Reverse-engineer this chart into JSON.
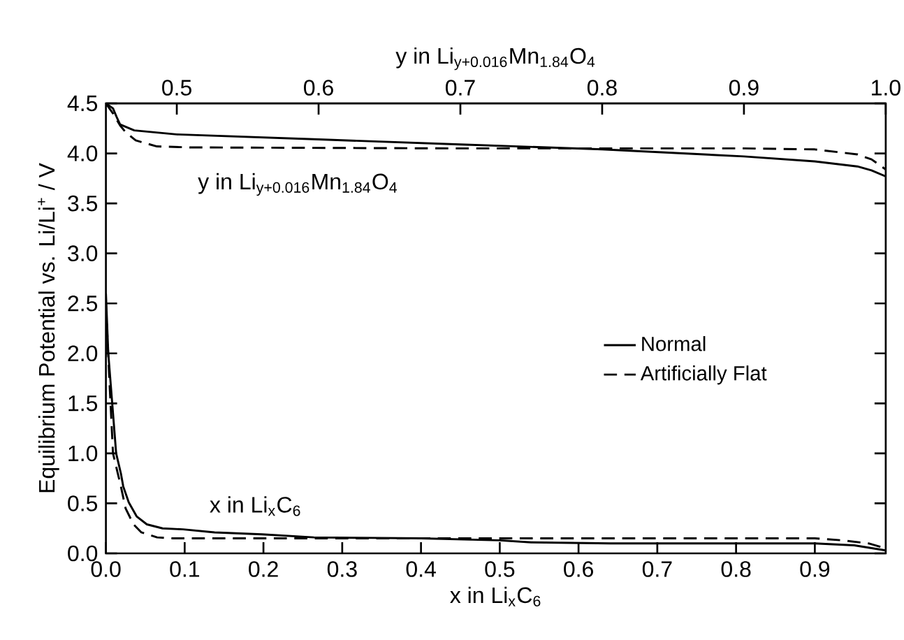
{
  "chart_data": {
    "type": "line",
    "xlabel": "x in Li$_{x}$C$_{6}$",
    "x2label": "y in Li$_{y+0.016}$Mn$_{1.84}$O$_{4}$",
    "ylabel": "Equilibrium Potential vs. Li/Li$^{+}$ / V",
    "xlim": [
      0,
      0.99
    ],
    "x2lim": [
      0.45,
      1.0
    ],
    "ylim": [
      0,
      4.5
    ],
    "xticks": [
      {
        "value": 0,
        "label": "0.0"
      },
      0.1,
      0.2,
      0.3,
      0.4,
      0.5,
      0.6,
      0.7,
      0.8,
      0.9
    ],
    "x2ticks": [
      0.5,
      0.6,
      0.7,
      0.8,
      0.9,
      {
        "value": 1.0,
        "label": "1.0"
      }
    ],
    "yticks": [
      {
        "value": 0,
        "label": "0.0"
      },
      0.5,
      {
        "value": 1.0,
        "label": "1.0"
      },
      1.5,
      {
        "value": 2.0,
        "label": "2.0"
      },
      2.5,
      {
        "value": 3.0,
        "label": "3.0"
      },
      3.5,
      {
        "value": 4.0,
        "label": "4.0"
      },
      4.5
    ],
    "legend": "right",
    "grid": false,
    "marker": "none",
    "annotations": [
      "y in Li$_{y+0.016}$Mn$_{1.84}$O$_{4}$",
      "x in Li$_{x}$C$_{6}$"
    ],
    "series": [
      {
        "name": "Normal",
        "color": "#000000",
        "line_style": "solid",
        "x": [
          0,
          0.003,
          0.009,
          0.013,
          0.019,
          0.022,
          0.029,
          0.039,
          0.052,
          0.072,
          0.098,
          0.138,
          0.198,
          0.264,
          0.4,
          0.5,
          0.54,
          0.64,
          0.8,
          0.9,
          0.95,
          0.99
        ],
        "values": [
          2.6,
          2.0,
          1.4,
          1.0,
          0.8,
          0.67,
          0.51,
          0.37,
          0.29,
          0.25,
          0.24,
          0.21,
          0.19,
          0.16,
          0.15,
          0.13,
          0.11,
          0.1,
          0.1,
          0.1,
          0.08,
          0.03
        ]
      },
      {
        "name": "Artificially Flat",
        "color": "#000000",
        "line_style": "dashed",
        "x": [
          0,
          0.004,
          0.009,
          0.019,
          0.025,
          0.035,
          0.045,
          0.065,
          0.085,
          0.3,
          0.6,
          0.9,
          0.935,
          0.968,
          0.99
        ],
        "values": [
          2.5,
          1.8,
          1.0,
          0.67,
          0.45,
          0.29,
          0.21,
          0.16,
          0.15,
          0.15,
          0.15,
          0.15,
          0.13,
          0.1,
          0.05
        ]
      },
      {
        "color": "#000000",
        "line_style": "solid",
        "axis": "x2",
        "x": [
          0.45,
          0.455,
          0.458,
          0.46,
          0.47,
          0.5,
          0.6,
          0.7,
          0.8,
          0.9,
          0.95,
          0.98,
          0.99,
          1.0
        ],
        "values": [
          4.5,
          4.45,
          4.35,
          4.29,
          4.23,
          4.19,
          4.14,
          4.09,
          4.04,
          3.97,
          3.92,
          3.87,
          3.83,
          3.77
        ]
      },
      {
        "color": "#000000",
        "line_style": "dashed",
        "axis": "x2",
        "x": [
          0.45,
          0.455,
          0.46,
          0.464,
          0.471,
          0.486,
          0.509,
          0.7,
          0.9,
          0.95,
          0.98,
          0.99,
          1.0
        ],
        "values": [
          4.5,
          4.4,
          4.28,
          4.21,
          4.13,
          4.07,
          4.06,
          4.05,
          4.05,
          4.04,
          3.99,
          3.94,
          3.84
        ]
      }
    ]
  }
}
